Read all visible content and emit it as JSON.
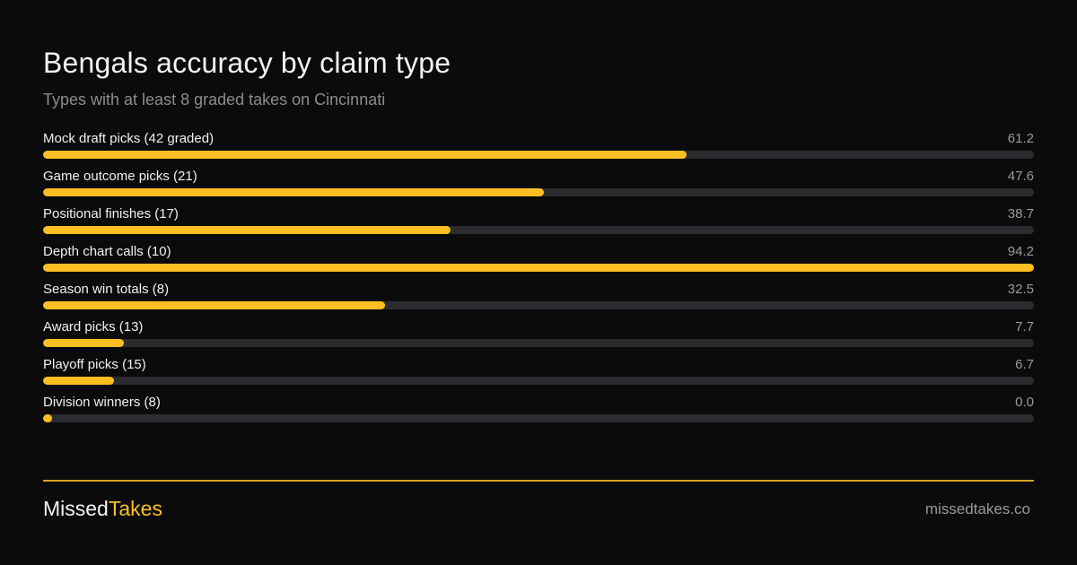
{
  "header": {
    "title": "Bengals accuracy by claim type",
    "subtitle": "Types with at least 8 graded takes on Cincinnati"
  },
  "colors": {
    "accent": "#fbbf24",
    "track": "#2c2b30",
    "background": "#0b0b0b"
  },
  "chart_data": {
    "type": "bar",
    "orientation": "horizontal",
    "title": "Bengals accuracy by claim type",
    "subtitle": "Types with at least 8 graded takes on Cincinnati",
    "xlim": [
      0,
      94.2
    ],
    "grid": false,
    "categories": [
      "Mock draft picks (42 graded)",
      "Game outcome picks (21)",
      "Positional finishes (17)",
      "Depth chart calls (10)",
      "Season win totals (8)",
      "Award picks (13)",
      "Playoff picks (15)",
      "Division winners (8)"
    ],
    "values": [
      61.2,
      47.6,
      38.7,
      94.2,
      32.5,
      7.7,
      6.7,
      0.0
    ],
    "value_labels": [
      "61.2",
      "47.6",
      "38.7",
      "94.2",
      "32.5",
      "7.7",
      "6.7",
      "0.0"
    ]
  },
  "footer": {
    "brand_part1": "Missed",
    "brand_part2": "Takes",
    "site": "missedtakes.co"
  }
}
